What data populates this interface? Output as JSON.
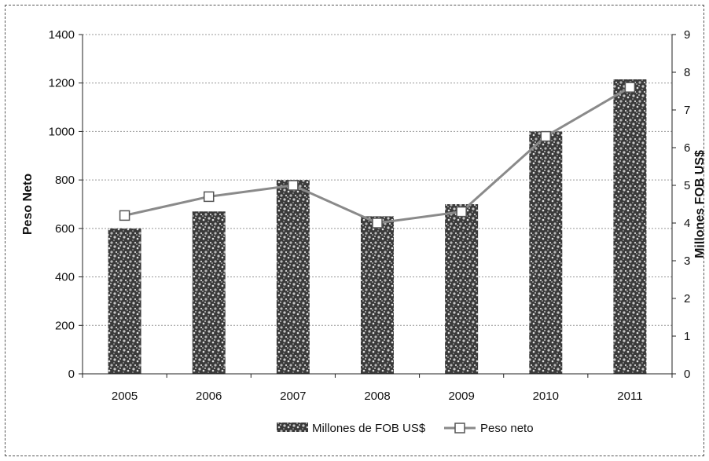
{
  "chart_data": {
    "type": "bar",
    "categories": [
      "2005",
      "2006",
      "2007",
      "2008",
      "2009",
      "2010",
      "2011"
    ],
    "series": [
      {
        "name": "Millones de FOB US$",
        "type": "bar",
        "axis": "left",
        "values": [
          600,
          670,
          800,
          650,
          700,
          1000,
          1215
        ]
      },
      {
        "name": "Peso neto",
        "type": "line",
        "axis": "right",
        "values": [
          4.2,
          4.7,
          5.0,
          4.0,
          4.3,
          6.3,
          7.6
        ]
      }
    ],
    "ylabel": "Peso Neto",
    "ylabel_right": "Millones FOB US$",
    "ylim": [
      0,
      1400
    ],
    "ylim_right": [
      0,
      9
    ],
    "yticks": [
      "0",
      "200",
      "400",
      "600",
      "800",
      "1000",
      "1200",
      "1400"
    ],
    "yticks_right": [
      "0",
      "1",
      "2",
      "3",
      "4",
      "5",
      "6",
      "7",
      "8",
      "9"
    ],
    "grid": true,
    "legend_position": "bottom",
    "colors": {
      "bar": "#333333",
      "bar_speckle": "#bdbdbd",
      "line": "#8a8a8a",
      "marker_fill": "#ffffff",
      "grid": "#999999"
    }
  }
}
